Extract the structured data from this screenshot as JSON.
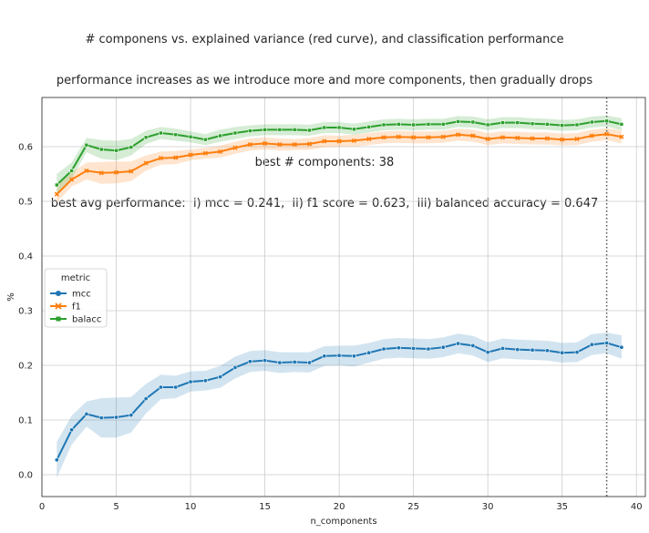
{
  "title_lines": [
    "# componens vs. explained variance (red curve), and classification performance",
    "performance increases as we introduce more and more components, then gradually drops",
    "",
    "best # components: 38",
    "best avg performance:  i) mcc = 0.241,  ii) f1 score = 0.623,  iii) balanced accuracy = 0.647"
  ],
  "chart_data": {
    "type": "line",
    "xlabel": "n_components",
    "ylabel": "%",
    "xlim": [
      0,
      40.6
    ],
    "ylim": [
      -0.04,
      0.69
    ],
    "xticks": [
      0,
      5,
      10,
      15,
      20,
      25,
      30,
      35,
      40
    ],
    "yticks": [
      0.0,
      0.1,
      0.2,
      0.3,
      0.4,
      0.5,
      0.6
    ],
    "ytick_labels": [
      "0.0",
      "0.1",
      "0.2",
      "0.3",
      "0.4",
      "0.5",
      "0.6"
    ],
    "grid": true,
    "legend": {
      "title": "metric",
      "placement": "center-left"
    },
    "vline": {
      "x": 38,
      "style": "dotted"
    },
    "x": [
      1,
      2,
      3,
      4,
      5,
      6,
      7,
      8,
      9,
      10,
      11,
      12,
      13,
      14,
      15,
      16,
      17,
      18,
      19,
      20,
      21,
      22,
      23,
      24,
      25,
      26,
      27,
      28,
      29,
      30,
      31,
      32,
      33,
      34,
      35,
      36,
      37,
      38,
      39
    ],
    "series": [
      {
        "name": "mcc",
        "color": "#1f77b4",
        "marker": "circle",
        "values": [
          0.027,
          0.082,
          0.111,
          0.104,
          0.105,
          0.109,
          0.139,
          0.16,
          0.16,
          0.17,
          0.172,
          0.179,
          0.196,
          0.207,
          0.209,
          0.205,
          0.206,
          0.205,
          0.217,
          0.218,
          0.217,
          0.223,
          0.23,
          0.232,
          0.231,
          0.23,
          0.233,
          0.24,
          0.236,
          0.224,
          0.231,
          0.229,
          0.228,
          0.227,
          0.223,
          0.224,
          0.238,
          0.241,
          0.233
        ],
        "lower": [
          -0.005,
          0.055,
          0.088,
          0.068,
          0.068,
          0.077,
          0.112,
          0.138,
          0.14,
          0.152,
          0.154,
          0.159,
          0.176,
          0.188,
          0.19,
          0.186,
          0.188,
          0.187,
          0.199,
          0.2,
          0.198,
          0.205,
          0.212,
          0.214,
          0.213,
          0.212,
          0.215,
          0.222,
          0.218,
          0.206,
          0.213,
          0.211,
          0.21,
          0.209,
          0.205,
          0.206,
          0.219,
          0.222,
          0.212
        ],
        "upper": [
          0.06,
          0.108,
          0.134,
          0.14,
          0.141,
          0.142,
          0.166,
          0.183,
          0.181,
          0.189,
          0.19,
          0.199,
          0.216,
          0.226,
          0.228,
          0.224,
          0.224,
          0.224,
          0.235,
          0.236,
          0.236,
          0.241,
          0.248,
          0.25,
          0.249,
          0.248,
          0.251,
          0.258,
          0.254,
          0.242,
          0.249,
          0.247,
          0.246,
          0.245,
          0.241,
          0.242,
          0.257,
          0.26,
          0.255
        ]
      },
      {
        "name": "f1",
        "color": "#ff7f0e",
        "marker": "x",
        "values": [
          0.513,
          0.54,
          0.556,
          0.552,
          0.553,
          0.555,
          0.57,
          0.579,
          0.58,
          0.585,
          0.588,
          0.591,
          0.598,
          0.604,
          0.606,
          0.604,
          0.604,
          0.605,
          0.61,
          0.61,
          0.611,
          0.614,
          0.617,
          0.618,
          0.617,
          0.617,
          0.618,
          0.622,
          0.62,
          0.614,
          0.617,
          0.616,
          0.615,
          0.615,
          0.613,
          0.614,
          0.62,
          0.623,
          0.618
        ],
        "lower": [
          0.498,
          0.527,
          0.54,
          0.532,
          0.533,
          0.537,
          0.556,
          0.567,
          0.568,
          0.575,
          0.578,
          0.58,
          0.587,
          0.593,
          0.595,
          0.593,
          0.594,
          0.594,
          0.599,
          0.6,
          0.6,
          0.603,
          0.606,
          0.607,
          0.606,
          0.606,
          0.607,
          0.611,
          0.609,
          0.603,
          0.606,
          0.605,
          0.604,
          0.604,
          0.602,
          0.603,
          0.609,
          0.612,
          0.606
        ],
        "upper": [
          0.528,
          0.553,
          0.571,
          0.572,
          0.573,
          0.573,
          0.584,
          0.591,
          0.592,
          0.595,
          0.598,
          0.602,
          0.609,
          0.615,
          0.617,
          0.615,
          0.614,
          0.616,
          0.621,
          0.62,
          0.622,
          0.625,
          0.628,
          0.629,
          0.628,
          0.628,
          0.629,
          0.633,
          0.631,
          0.625,
          0.628,
          0.627,
          0.626,
          0.626,
          0.624,
          0.625,
          0.631,
          0.634,
          0.63
        ]
      },
      {
        "name": "balacc",
        "color": "#2ca02c",
        "marker": "square",
        "values": [
          0.53,
          0.556,
          0.603,
          0.595,
          0.593,
          0.599,
          0.617,
          0.625,
          0.622,
          0.618,
          0.613,
          0.62,
          0.625,
          0.629,
          0.631,
          0.631,
          0.631,
          0.63,
          0.635,
          0.635,
          0.632,
          0.636,
          0.64,
          0.641,
          0.64,
          0.641,
          0.641,
          0.646,
          0.645,
          0.64,
          0.644,
          0.644,
          0.642,
          0.641,
          0.639,
          0.64,
          0.645,
          0.647,
          0.641
        ],
        "lower": [
          0.51,
          0.541,
          0.59,
          0.578,
          0.575,
          0.584,
          0.605,
          0.614,
          0.611,
          0.608,
          0.603,
          0.609,
          0.614,
          0.619,
          0.621,
          0.621,
          0.621,
          0.62,
          0.625,
          0.625,
          0.622,
          0.626,
          0.63,
          0.631,
          0.63,
          0.631,
          0.631,
          0.636,
          0.635,
          0.63,
          0.634,
          0.634,
          0.632,
          0.631,
          0.629,
          0.63,
          0.635,
          0.637,
          0.63
        ],
        "upper": [
          0.55,
          0.571,
          0.616,
          0.612,
          0.611,
          0.614,
          0.629,
          0.636,
          0.633,
          0.628,
          0.623,
          0.631,
          0.636,
          0.639,
          0.641,
          0.641,
          0.641,
          0.64,
          0.645,
          0.645,
          0.642,
          0.646,
          0.65,
          0.651,
          0.65,
          0.651,
          0.651,
          0.656,
          0.655,
          0.65,
          0.654,
          0.654,
          0.652,
          0.651,
          0.649,
          0.65,
          0.655,
          0.657,
          0.652
        ]
      }
    ]
  }
}
